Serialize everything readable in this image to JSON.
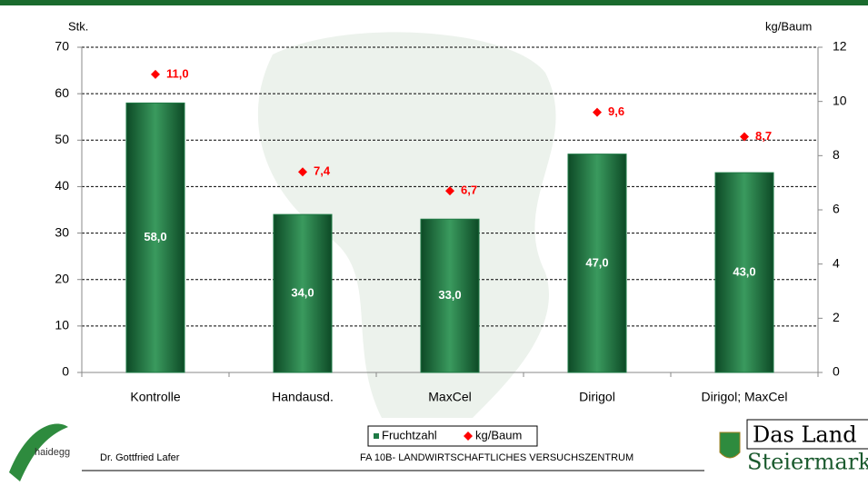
{
  "chart_data": {
    "type": "bar",
    "categories": [
      "Kontrolle",
      "Handausd.",
      "MaxCel",
      "Dirigol",
      "Dirigol; MaxCel"
    ],
    "series": [
      {
        "name": "Fruchtzahl",
        "color": "#1e7a45",
        "values": [
          58,
          34,
          33,
          47,
          43
        ],
        "value_labels": [
          "58,0",
          "34,0",
          "33,0",
          "47,0",
          "43,0"
        ]
      },
      {
        "name": "kg/Baum",
        "color": "#ff0000",
        "axis": "y2",
        "values": [
          11.0,
          7.4,
          6.7,
          9.6,
          8.7
        ],
        "value_labels": [
          "11,0",
          "7,4",
          "6,7",
          "9,6",
          "8,7"
        ]
      }
    ],
    "ylabel": "Stk.",
    "y2label": "kg/Baum",
    "ylim": [
      0,
      70
    ],
    "yticks": [
      0,
      10,
      20,
      30,
      40,
      50,
      60,
      70
    ],
    "y2lim": [
      0,
      12
    ],
    "y2ticks": [
      0,
      2,
      4,
      6,
      8,
      10,
      12
    ],
    "grid": true,
    "legend": "bottom"
  },
  "footer": {
    "logo_left": "haidegg",
    "author": "Dr. Gottfried Lafer",
    "institute": "FA 10B- LANDWIRTSCHAFTLICHES VERSUCHSZENTRUM",
    "logo_right_1": "Das Land",
    "logo_right_2": "Steiermark"
  }
}
